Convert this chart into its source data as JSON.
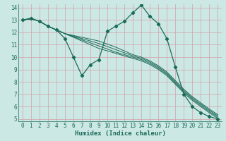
{
  "xlabel": "Humidex (Indice chaleur)",
  "bg_color": "#cce8e4",
  "grid_color": "#d4a0a8",
  "line_color": "#1a6b5a",
  "xlim": [
    -0.5,
    23.5
  ],
  "ylim": [
    4.8,
    14.3
  ],
  "yticks": [
    5,
    6,
    7,
    8,
    9,
    10,
    11,
    12,
    13,
    14
  ],
  "xticks": [
    0,
    1,
    2,
    3,
    4,
    5,
    6,
    7,
    8,
    9,
    10,
    11,
    12,
    13,
    14,
    15,
    16,
    17,
    18,
    19,
    20,
    21,
    22,
    23
  ],
  "series": [
    {
      "x": [
        0,
        1,
        2,
        3,
        4,
        5,
        6,
        7,
        8,
        9,
        10,
        11,
        12,
        13,
        14,
        15,
        16,
        17,
        18,
        19,
        20,
        21,
        22,
        23
      ],
      "y": [
        13.0,
        13.15,
        12.9,
        12.5,
        12.2,
        11.5,
        10.0,
        8.5,
        9.4,
        9.8,
        12.1,
        12.5,
        12.9,
        13.6,
        14.2,
        13.3,
        12.7,
        11.5,
        9.2,
        7.0,
        6.0,
        5.5,
        5.2,
        5.0
      ],
      "marker": true
    },
    {
      "x": [
        0,
        1,
        2,
        3,
        4,
        5,
        6,
        7,
        8,
        9,
        10,
        11,
        12,
        13,
        14,
        15,
        16,
        17,
        18,
        19,
        20,
        21,
        22,
        23
      ],
      "y": [
        13.0,
        13.1,
        12.9,
        12.5,
        12.2,
        11.9,
        11.6,
        11.3,
        11.0,
        10.7,
        10.5,
        10.3,
        10.1,
        9.9,
        9.7,
        9.4,
        9.0,
        8.5,
        7.8,
        7.1,
        6.5,
        6.0,
        5.5,
        5.05
      ],
      "marker": false
    },
    {
      "x": [
        0,
        1,
        2,
        3,
        4,
        5,
        6,
        7,
        8,
        9,
        10,
        11,
        12,
        13,
        14,
        15,
        16,
        17,
        18,
        19,
        20,
        21,
        22,
        23
      ],
      "y": [
        13.0,
        13.1,
        12.9,
        12.5,
        12.2,
        11.9,
        11.65,
        11.4,
        11.15,
        10.9,
        10.65,
        10.4,
        10.2,
        10.0,
        9.8,
        9.5,
        9.1,
        8.6,
        7.9,
        7.2,
        6.6,
        6.1,
        5.6,
        5.15
      ],
      "marker": false
    },
    {
      "x": [
        0,
        1,
        2,
        3,
        4,
        5,
        6,
        7,
        8,
        9,
        10,
        11,
        12,
        13,
        14,
        15,
        16,
        17,
        18,
        19,
        20,
        21,
        22,
        23
      ],
      "y": [
        13.0,
        13.1,
        12.9,
        12.5,
        12.2,
        11.9,
        11.7,
        11.5,
        11.3,
        11.1,
        10.85,
        10.6,
        10.35,
        10.1,
        9.9,
        9.6,
        9.2,
        8.7,
        8.0,
        7.3,
        6.7,
        6.2,
        5.7,
        5.25
      ],
      "marker": false
    },
    {
      "x": [
        0,
        1,
        2,
        3,
        4,
        5,
        6,
        7,
        8,
        9,
        10,
        11,
        12,
        13,
        14,
        15,
        16,
        17,
        18,
        19,
        20,
        21,
        22,
        23
      ],
      "y": [
        13.0,
        13.1,
        12.9,
        12.5,
        12.2,
        11.9,
        11.75,
        11.6,
        11.45,
        11.3,
        11.05,
        10.8,
        10.5,
        10.2,
        10.0,
        9.7,
        9.3,
        8.8,
        8.1,
        7.4,
        6.8,
        6.3,
        5.8,
        5.35
      ],
      "marker": false
    }
  ]
}
